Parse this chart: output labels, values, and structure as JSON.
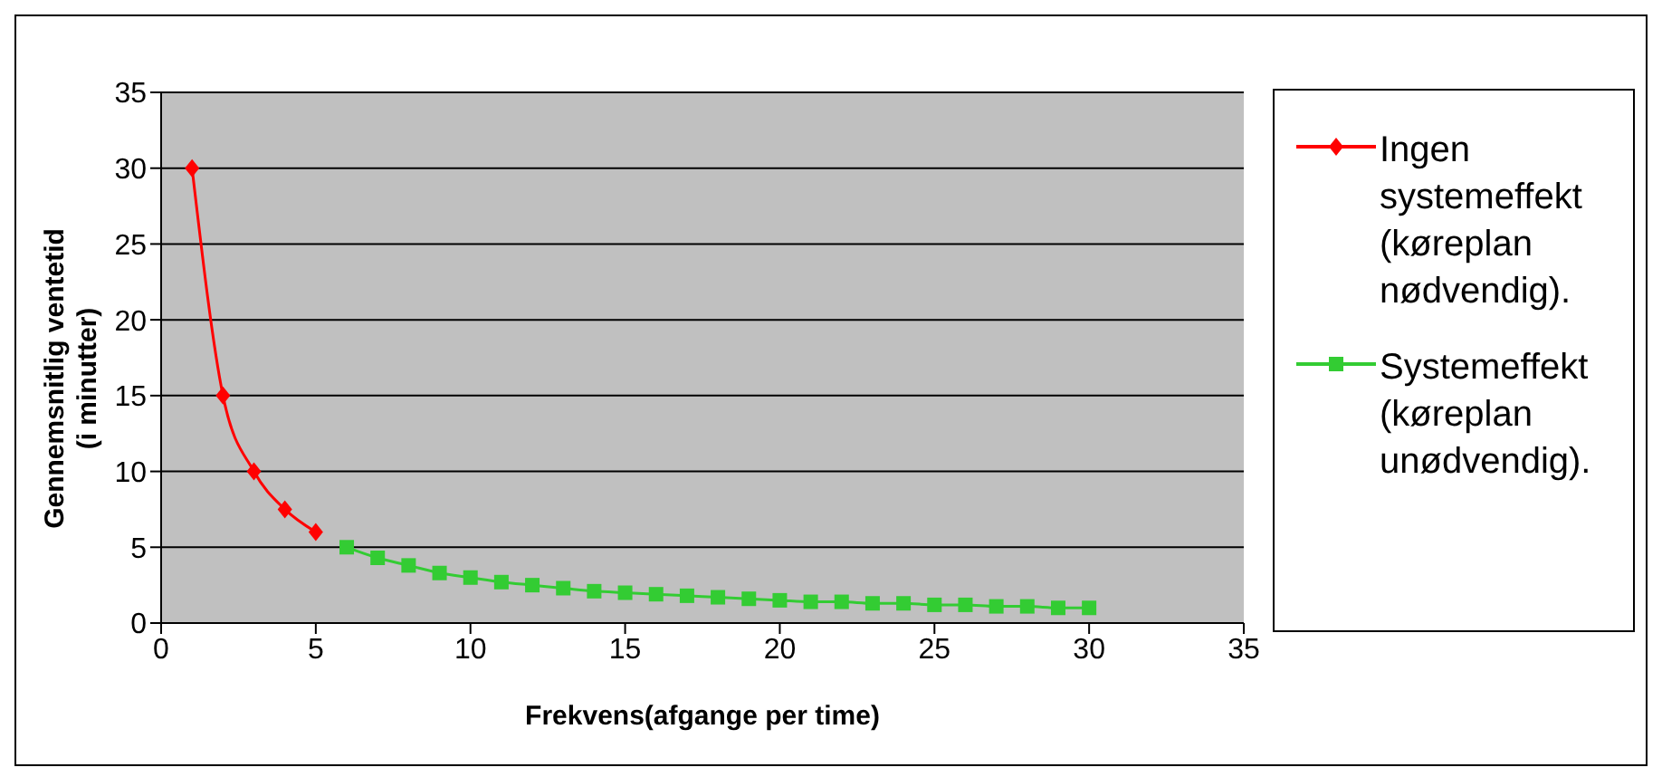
{
  "chart_data": {
    "type": "line",
    "xlabel": "Frekvens(afgange per time)",
    "ylabel": "Gennemsnitlig ventetid\n(i minutter)",
    "xlim": [
      0,
      35
    ],
    "xticks": [
      0,
      5,
      10,
      15,
      20,
      25,
      30,
      35
    ],
    "ylim": [
      0,
      35
    ],
    "yticks": [
      0,
      5,
      10,
      15,
      20,
      25,
      30,
      35
    ],
    "grid": "y",
    "legend": "right",
    "series": [
      {
        "name": "Ingen systemeffekt (køreplan nødvendig).",
        "color": "#ff0000",
        "marker": "diamond",
        "x": [
          1,
          2,
          3,
          4,
          5
        ],
        "values": [
          30,
          15,
          10,
          7.5,
          6
        ]
      },
      {
        "name": "Systemeffekt (køreplan unødvendig).",
        "color": "#33cc33",
        "marker": "square",
        "x": [
          6,
          7,
          8,
          9,
          10,
          11,
          12,
          13,
          14,
          15,
          16,
          17,
          18,
          19,
          20,
          21,
          22,
          23,
          24,
          25,
          26,
          27,
          28,
          29,
          30
        ],
        "values": [
          5.0,
          4.3,
          3.8,
          3.3,
          3.0,
          2.7,
          2.5,
          2.3,
          2.1,
          2.0,
          1.9,
          1.8,
          1.7,
          1.6,
          1.5,
          1.4,
          1.4,
          1.3,
          1.3,
          1.2,
          1.2,
          1.1,
          1.1,
          1.0,
          1.0
        ]
      }
    ]
  }
}
